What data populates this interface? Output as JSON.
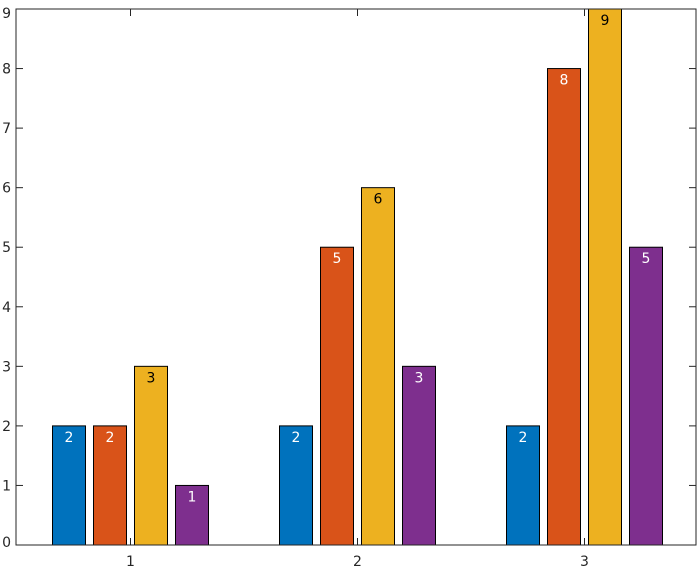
{
  "chart_data": {
    "type": "bar",
    "categories": [
      "1",
      "2",
      "3"
    ],
    "series": [
      {
        "values": [
          2,
          2,
          2
        ],
        "color": "#0072BD",
        "label_color": "#ffffff"
      },
      {
        "values": [
          2,
          5,
          8
        ],
        "color": "#D95319",
        "label_color": "#ffffff"
      },
      {
        "values": [
          3,
          6,
          9
        ],
        "color": "#EDB120",
        "label_color": "#000000"
      },
      {
        "values": [
          1,
          3,
          5
        ],
        "color": "#7E2F8E",
        "label_color": "#ffffff"
      }
    ],
    "ylim": [
      0,
      9
    ],
    "yticks": [
      0,
      1,
      2,
      3,
      4,
      5,
      6,
      7,
      8,
      9
    ],
    "grid": false,
    "legend": "none",
    "title": "",
    "xlabel": "",
    "ylabel": ""
  }
}
